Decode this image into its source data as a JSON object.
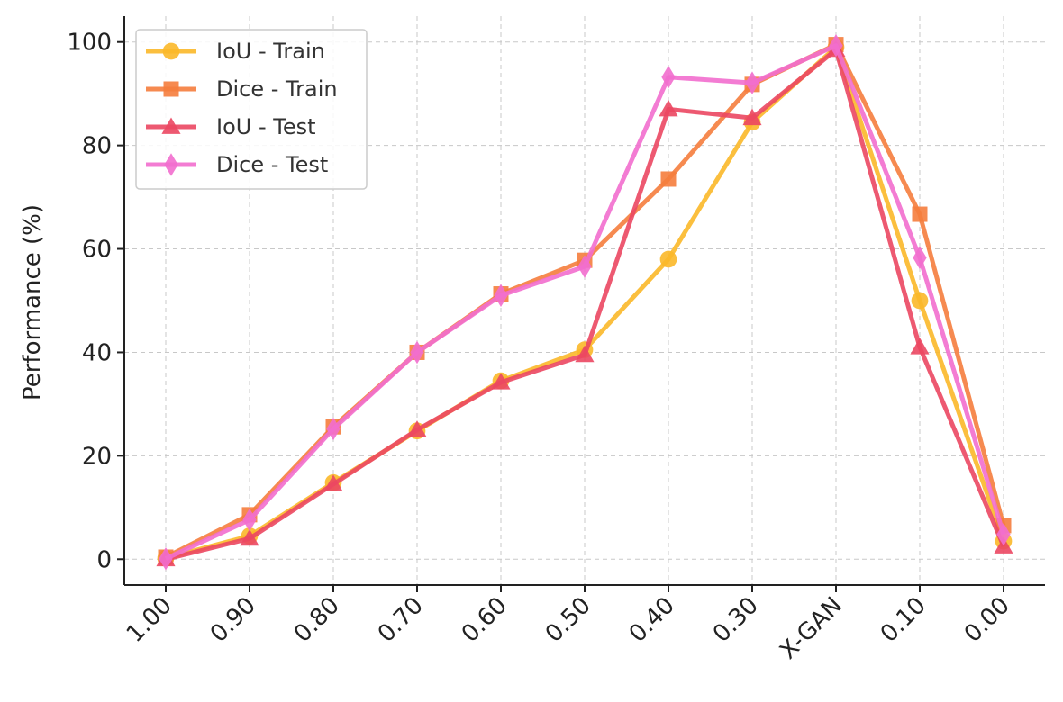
{
  "chart_data": {
    "type": "line",
    "title": "",
    "xlabel": "",
    "ylabel": "Performance (%)",
    "categories": [
      "1.00",
      "0.90",
      "0.80",
      "0.70",
      "0.60",
      "0.50",
      "0.40",
      "0.30",
      "X-GAN",
      "0.10",
      "0.00"
    ],
    "yticks": [
      "0",
      "20",
      "40",
      "60",
      "80",
      "100"
    ],
    "ylim": [
      -5,
      105
    ],
    "grid": true,
    "legend_position": "top-left",
    "series": [
      {
        "name": "IoU - Train",
        "color": "#fbb829",
        "marker": "circle",
        "values": [
          0.2,
          4.5,
          14.8,
          24.8,
          34.5,
          40.5,
          58.0,
          84.5,
          99.0,
          50.0,
          3.5
        ]
      },
      {
        "name": "Dice - Train",
        "color": "#f57d3d",
        "marker": "square",
        "values": [
          0.4,
          8.6,
          25.6,
          40.0,
          51.3,
          57.8,
          73.5,
          91.8,
          99.5,
          66.7,
          6.5
        ]
      },
      {
        "name": "IoU - Test",
        "color": "#eb4762",
        "marker": "triangle",
        "values": [
          0.0,
          4.0,
          14.5,
          25.0,
          34.2,
          39.5,
          87.0,
          85.3,
          98.5,
          41.0,
          2.5
        ]
      },
      {
        "name": "Dice - Test",
        "color": "#f26ece",
        "marker": "diamond",
        "values": [
          0.1,
          7.6,
          25.2,
          40.0,
          51.0,
          56.6,
          93.2,
          92.1,
          99.3,
          58.3,
          4.8
        ]
      }
    ]
  }
}
